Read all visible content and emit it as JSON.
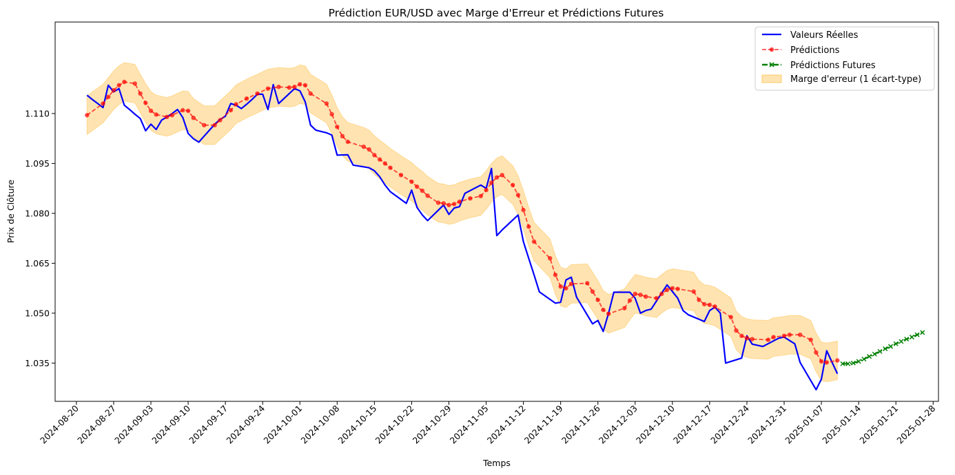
{
  "chart_data": {
    "type": "line",
    "title": "Prédiction EUR/USD avec Marge d'Erreur et Prédictions Futures",
    "xlabel": "Temps",
    "ylabel": "Prix de Clôture",
    "ylim": [
      1.0235,
      1.1375
    ],
    "xlim": [
      "2024-08-16",
      "2025-01-29"
    ],
    "yticks": [
      1.035,
      1.05,
      1.065,
      1.08,
      1.095,
      1.11
    ],
    "xticks": [
      "2024-08-20",
      "2024-08-27",
      "2024-09-03",
      "2024-09-10",
      "2024-09-17",
      "2024-09-24",
      "2024-10-01",
      "2024-10-08",
      "2024-10-15",
      "2024-10-22",
      "2024-10-29",
      "2024-11-05",
      "2024-11-12",
      "2024-11-19",
      "2024-11-26",
      "2024-12-03",
      "2024-12-10",
      "2024-12-17",
      "2024-12-24",
      "2024-12-31",
      "2025-01-07",
      "2025-01-14",
      "2025-01-21",
      "2025-01-28"
    ],
    "legend": {
      "placement": "top-right"
    },
    "grid": false,
    "series": [
      {
        "name": "Valeurs Réelles",
        "style": "solid",
        "color": "#0000ff",
        "points": [
          [
            "2024-08-22",
            1.1155
          ],
          [
            "2024-08-23",
            1.1142
          ],
          [
            "2024-08-24",
            1.113
          ],
          [
            "2024-08-25",
            1.1118
          ],
          [
            "2024-08-26",
            1.1185
          ],
          [
            "2024-08-27",
            1.1165
          ],
          [
            "2024-08-28",
            1.1175
          ],
          [
            "2024-08-29",
            1.1125
          ],
          [
            "2024-08-30",
            1.1112
          ],
          [
            "2024-08-31",
            1.1098
          ],
          [
            "2024-09-01",
            1.1085
          ],
          [
            "2024-09-02",
            1.1048
          ],
          [
            "2024-09-03",
            1.1068
          ],
          [
            "2024-09-04",
            1.1052
          ],
          [
            "2024-09-05",
            1.108
          ],
          [
            "2024-09-06",
            1.109
          ],
          [
            "2024-09-07",
            1.11
          ],
          [
            "2024-09-08",
            1.1112
          ],
          [
            "2024-09-09",
            1.1088
          ],
          [
            "2024-09-10",
            1.104
          ],
          [
            "2024-09-11",
            1.1024
          ],
          [
            "2024-09-12",
            1.1014
          ],
          [
            "2024-09-13",
            1.1032
          ],
          [
            "2024-09-14",
            1.105
          ],
          [
            "2024-09-15",
            1.1068
          ],
          [
            "2024-09-16",
            1.1082
          ],
          [
            "2024-09-17",
            1.1092
          ],
          [
            "2024-09-18",
            1.113
          ],
          [
            "2024-09-19",
            1.1125
          ],
          [
            "2024-09-20",
            1.1115
          ],
          [
            "2024-09-21",
            1.1128
          ],
          [
            "2024-09-22",
            1.1142
          ],
          [
            "2024-09-23",
            1.1158
          ],
          [
            "2024-09-24",
            1.1158
          ],
          [
            "2024-09-25",
            1.1112
          ],
          [
            "2024-09-26",
            1.1187
          ],
          [
            "2024-09-27",
            1.113
          ],
          [
            "2024-09-28",
            1.1145
          ],
          [
            "2024-09-29",
            1.116
          ],
          [
            "2024-09-30",
            1.1175
          ],
          [
            "2024-10-01",
            1.1168
          ],
          [
            "2024-10-02",
            1.1135
          ],
          [
            "2024-10-03",
            1.1065
          ],
          [
            "2024-10-04",
            1.105
          ],
          [
            "2024-10-06",
            1.1042
          ],
          [
            "2024-10-07",
            1.1035
          ],
          [
            "2024-10-08",
            1.0975
          ],
          [
            "2024-10-10",
            1.0976
          ],
          [
            "2024-10-11",
            1.0945
          ],
          [
            "2024-10-14",
            1.0937
          ],
          [
            "2024-10-15",
            1.0928
          ],
          [
            "2024-10-16",
            1.091
          ],
          [
            "2024-10-17",
            1.0885
          ],
          [
            "2024-10-18",
            1.0865
          ],
          [
            "2024-10-21",
            1.083
          ],
          [
            "2024-10-22",
            1.087
          ],
          [
            "2024-10-23",
            1.0818
          ],
          [
            "2024-10-24",
            1.0795
          ],
          [
            "2024-10-25",
            1.0778
          ],
          [
            "2024-10-28",
            1.0825
          ],
          [
            "2024-10-29",
            1.0797
          ],
          [
            "2024-10-30",
            1.0816
          ],
          [
            "2024-10-31",
            1.082
          ],
          [
            "2024-11-01",
            1.086
          ],
          [
            "2024-11-04",
            1.0885
          ],
          [
            "2024-11-05",
            1.0875
          ],
          [
            "2024-11-06",
            1.0935
          ],
          [
            "2024-11-07",
            1.0733
          ],
          [
            "2024-11-08",
            1.075
          ],
          [
            "2024-11-11",
            1.0795
          ],
          [
            "2024-11-12",
            1.0715
          ],
          [
            "2024-11-13",
            1.0665
          ],
          [
            "2024-11-14",
            1.0615
          ],
          [
            "2024-11-15",
            1.0564
          ],
          [
            "2024-11-18",
            1.053
          ],
          [
            "2024-11-19",
            1.0533
          ],
          [
            "2024-11-20",
            1.06
          ],
          [
            "2024-11-21",
            1.0608
          ],
          [
            "2024-11-22",
            1.0548
          ],
          [
            "2024-11-25",
            1.0468
          ],
          [
            "2024-11-26",
            1.0478
          ],
          [
            "2024-11-27",
            1.0445
          ],
          [
            "2024-11-28",
            1.05
          ],
          [
            "2024-11-29",
            1.0563
          ],
          [
            "2024-12-02",
            1.0563
          ],
          [
            "2024-12-03",
            1.0545
          ],
          [
            "2024-12-04",
            1.05
          ],
          [
            "2024-12-05",
            1.0508
          ],
          [
            "2024-12-06",
            1.0512
          ],
          [
            "2024-12-09",
            1.0585
          ],
          [
            "2024-12-10",
            1.0565
          ],
          [
            "2024-12-11",
            1.0545
          ],
          [
            "2024-12-12",
            1.0508
          ],
          [
            "2024-12-13",
            1.0495
          ],
          [
            "2024-12-16",
            1.0475
          ],
          [
            "2024-12-17",
            1.0508
          ],
          [
            "2024-12-18",
            1.0518
          ],
          [
            "2024-12-19",
            1.05
          ],
          [
            "2024-12-20",
            1.035
          ],
          [
            "2024-12-23",
            1.0365
          ],
          [
            "2024-12-24",
            1.0432
          ],
          [
            "2024-12-25",
            1.0407
          ],
          [
            "2024-12-27",
            1.04
          ],
          [
            "2024-12-30",
            1.0425
          ],
          [
            "2024-12-31",
            1.0428
          ],
          [
            "2025-01-02",
            1.0408
          ],
          [
            "2025-01-03",
            1.0352
          ],
          [
            "2025-01-06",
            1.027
          ],
          [
            "2025-01-07",
            1.0302
          ],
          [
            "2025-01-08",
            1.0387
          ],
          [
            "2025-01-10",
            1.0318
          ]
        ]
      },
      {
        "name": "Prédictions",
        "style": "dashed-circle",
        "color": "#ff0000",
        "points": [
          [
            "2024-08-22",
            1.1095
          ],
          [
            "2024-08-25",
            1.113
          ],
          [
            "2024-08-26",
            1.115
          ],
          [
            "2024-08-27",
            1.117
          ],
          [
            "2024-08-28",
            1.1185
          ],
          [
            "2024-08-29",
            1.1195
          ],
          [
            "2024-08-31",
            1.119
          ],
          [
            "2024-09-01",
            1.116
          ],
          [
            "2024-09-02",
            1.1132
          ],
          [
            "2024-09-03",
            1.1108
          ],
          [
            "2024-09-04",
            1.1097
          ],
          [
            "2024-09-06",
            1.109
          ],
          [
            "2024-09-07",
            1.1095
          ],
          [
            "2024-09-09",
            1.111
          ],
          [
            "2024-09-10",
            1.1108
          ],
          [
            "2024-09-11",
            1.1087
          ],
          [
            "2024-09-13",
            1.1065
          ],
          [
            "2024-09-15",
            1.1065
          ],
          [
            "2024-09-16",
            1.108
          ],
          [
            "2024-09-18",
            1.111
          ],
          [
            "2024-09-19",
            1.1128
          ],
          [
            "2024-09-21",
            1.1145
          ],
          [
            "2024-09-23",
            1.116
          ],
          [
            "2024-09-25",
            1.1175
          ],
          [
            "2024-09-27",
            1.118
          ],
          [
            "2024-09-29",
            1.1178
          ],
          [
            "2024-09-30",
            1.118
          ],
          [
            "2024-10-01",
            1.1188
          ],
          [
            "2024-10-02",
            1.1185
          ],
          [
            "2024-10-03",
            1.116
          ],
          [
            "2024-10-06",
            1.113
          ],
          [
            "2024-10-07",
            1.1098
          ],
          [
            "2024-10-08",
            1.106
          ],
          [
            "2024-10-09",
            1.1032
          ],
          [
            "2024-10-10",
            1.1015
          ],
          [
            "2024-10-13",
            1.1
          ],
          [
            "2024-10-14",
            1.0992
          ],
          [
            "2024-10-15",
            1.0975
          ],
          [
            "2024-10-16",
            1.0962
          ],
          [
            "2024-10-17",
            1.095
          ],
          [
            "2024-10-18",
            1.0937
          ],
          [
            "2024-10-20",
            1.0915
          ],
          [
            "2024-10-22",
            1.0895
          ],
          [
            "2024-10-23",
            1.088
          ],
          [
            "2024-10-24",
            1.0868
          ],
          [
            "2024-10-25",
            1.0853
          ],
          [
            "2024-10-27",
            1.0832
          ],
          [
            "2024-10-28",
            1.083
          ],
          [
            "2024-10-29",
            1.0825
          ],
          [
            "2024-10-30",
            1.0828
          ],
          [
            "2024-10-31",
            1.0835
          ],
          [
            "2024-11-02",
            1.0845
          ],
          [
            "2024-11-04",
            1.0852
          ],
          [
            "2024-11-05",
            1.087
          ],
          [
            "2024-11-06",
            1.0892
          ],
          [
            "2024-11-07",
            1.0908
          ],
          [
            "2024-11-08",
            1.0915
          ],
          [
            "2024-11-10",
            1.0885
          ],
          [
            "2024-11-11",
            1.0855
          ],
          [
            "2024-11-12",
            1.081
          ],
          [
            "2024-11-13",
            1.076
          ],
          [
            "2024-11-14",
            1.0715
          ],
          [
            "2024-11-17",
            1.0665
          ],
          [
            "2024-11-18",
            1.0615
          ],
          [
            "2024-11-19",
            1.058
          ],
          [
            "2024-11-20",
            1.0575
          ],
          [
            "2024-11-21",
            1.0588
          ],
          [
            "2024-11-24",
            1.059
          ],
          [
            "2024-11-25",
            1.0565
          ],
          [
            "2024-11-26",
            1.054
          ],
          [
            "2024-11-27",
            1.051
          ],
          [
            "2024-11-28",
            1.0498
          ],
          [
            "2024-12-01",
            1.0515
          ],
          [
            "2024-12-02",
            1.0538
          ],
          [
            "2024-12-03",
            1.0558
          ],
          [
            "2024-12-04",
            1.0555
          ],
          [
            "2024-12-05",
            1.055
          ],
          [
            "2024-12-07",
            1.0545
          ],
          [
            "2024-12-08",
            1.0558
          ],
          [
            "2024-12-09",
            1.057
          ],
          [
            "2024-12-10",
            1.0575
          ],
          [
            "2024-12-11",
            1.0573
          ],
          [
            "2024-12-14",
            1.0565
          ],
          [
            "2024-12-15",
            1.054
          ],
          [
            "2024-12-16",
            1.0527
          ],
          [
            "2024-12-17",
            1.0525
          ],
          [
            "2024-12-18",
            1.052
          ],
          [
            "2024-12-21",
            1.0488
          ],
          [
            "2024-12-22",
            1.0448
          ],
          [
            "2024-12-23",
            1.0432
          ],
          [
            "2024-12-24",
            1.0425
          ],
          [
            "2024-12-25",
            1.0422
          ],
          [
            "2024-12-28",
            1.042
          ],
          [
            "2024-12-29",
            1.0428
          ],
          [
            "2024-12-31",
            1.0432
          ],
          [
            "2025-01-01",
            1.0435
          ],
          [
            "2025-01-03",
            1.0435
          ],
          [
            "2025-01-05",
            1.042
          ],
          [
            "2025-01-06",
            1.0382
          ],
          [
            "2025-01-07",
            1.0355
          ],
          [
            "2025-01-08",
            1.0352
          ],
          [
            "2025-01-10",
            1.0358
          ]
        ]
      },
      {
        "name": "Prédictions Futures",
        "style": "dashdot-x",
        "color": "#008000",
        "points": [
          [
            "2025-01-11",
            1.0348
          ],
          [
            "2025-01-12",
            1.0348
          ],
          [
            "2025-01-13",
            1.035
          ],
          [
            "2025-01-14",
            1.0355
          ],
          [
            "2025-01-15",
            1.0362
          ],
          [
            "2025-01-16",
            1.037
          ],
          [
            "2025-01-17",
            1.0377
          ],
          [
            "2025-01-18",
            1.0385
          ],
          [
            "2025-01-19",
            1.0393
          ],
          [
            "2025-01-20",
            1.04
          ],
          [
            "2025-01-21",
            1.0408
          ],
          [
            "2025-01-22",
            1.0415
          ],
          [
            "2025-01-23",
            1.0422
          ],
          [
            "2025-01-24",
            1.0428
          ],
          [
            "2025-01-25",
            1.0435
          ],
          [
            "2025-01-26",
            1.0442
          ]
        ]
      }
    ],
    "band": {
      "name": "Marge d'erreur (1 écart-type)",
      "color": "#ffa500",
      "half_width": 0.0058
    }
  }
}
